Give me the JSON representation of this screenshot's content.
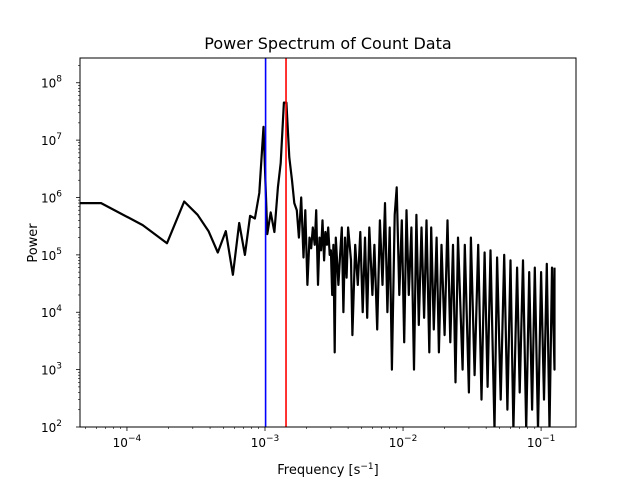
{
  "chart_data": {
    "type": "line",
    "title": "Power Spectrum of Count Data",
    "xlabel": "Frequency [s",
    "xlabel_sup": "−1",
    "xlabel_end": "]",
    "ylabel": "Power",
    "xscale": "log",
    "yscale": "log",
    "xlim": [
      4.57e-05,
      0.179
    ],
    "ylim": [
      100,
      270000000.0
    ],
    "grid": false,
    "x_ticks": [
      {
        "base": "10",
        "exp": "−4",
        "value": 0.0001
      },
      {
        "base": "10",
        "exp": "−3",
        "value": 0.001
      },
      {
        "base": "10",
        "exp": "−2",
        "value": 0.01
      },
      {
        "base": "10",
        "exp": "−1",
        "value": 0.1
      }
    ],
    "y_ticks": [
      {
        "base": "10",
        "exp": "2",
        "value": 100.0
      },
      {
        "base": "10",
        "exp": "3",
        "value": 1000.0
      },
      {
        "base": "10",
        "exp": "4",
        "value": 10000.0
      },
      {
        "base": "10",
        "exp": "5",
        "value": 100000.0
      },
      {
        "base": "10",
        "exp": "6",
        "value": 1000000.0
      },
      {
        "base": "10",
        "exp": "7",
        "value": 10000000.0
      },
      {
        "base": "10",
        "exp": "8",
        "value": 100000000.0
      }
    ],
    "vertical_lines": [
      {
        "x": 0.00101,
        "color": "#0000ff"
      },
      {
        "x": 0.00142,
        "color": "#ff0000"
      }
    ],
    "series_color": "#000000",
    "points": [
      [
        3.3e-05,
        800000.0
      ],
      [
        6.5e-05,
        800000.0
      ],
      [
        0.00013,
        330000.0
      ],
      [
        0.000195,
        160000.0
      ],
      [
        0.00026,
        850000.0
      ],
      [
        0.000325,
        500000.0
      ],
      [
        0.00039,
        260000.0
      ],
      [
        0.000455,
        110000.0
      ],
      [
        0.00052,
        260000.0
      ],
      [
        0.000585,
        45000.0
      ],
      [
        0.00065,
        360000.0
      ],
      [
        0.000715,
        100000.0
      ],
      [
        0.00078,
        480000.0
      ],
      [
        0.000845,
        430000.0
      ],
      [
        0.00091,
        1200000.0
      ],
      [
        0.000975,
        17000000.0
      ],
      [
        0.00104,
        230000.0
      ],
      [
        0.0011,
        550000.0
      ],
      [
        0.00117,
        250000.0
      ],
      [
        0.00124,
        1500000.0
      ],
      [
        0.0013,
        4000000.0
      ],
      [
        0.00137,
        45000000.0
      ],
      [
        0.00143,
        45000000.0
      ],
      [
        0.0015,
        5000000.0
      ],
      [
        0.00157,
        2000000.0
      ],
      [
        0.00163,
        800000.0
      ],
      [
        0.0017,
        600000.0
      ],
      [
        0.00176,
        200000.0
      ],
      [
        0.00183,
        1000000.0
      ],
      [
        0.0019,
        90000.0
      ],
      [
        0.00196,
        600000.0
      ],
      [
        0.00203,
        30000.0
      ],
      [
        0.0021,
        200000.0
      ],
      [
        0.00216,
        130000.0
      ],
      [
        0.00222,
        300000.0
      ],
      [
        0.00229,
        150000.0
      ],
      [
        0.00235,
        600000.0
      ],
      [
        0.00242,
        30000.0
      ],
      [
        0.00248,
        200000.0
      ],
      [
        0.00255,
        120000.0
      ],
      [
        0.00261,
        400000.0
      ],
      [
        0.00268,
        80000.0
      ],
      [
        0.00274,
        250000.0
      ],
      [
        0.00281,
        150000.0
      ],
      [
        0.00287,
        300000.0
      ],
      [
        0.00294,
        100000.0
      ],
      [
        0.003,
        120000.0
      ],
      [
        0.00307,
        20000.0
      ],
      [
        0.00313,
        150000.0
      ],
      [
        0.0032,
        2000.0
      ],
      [
        0.00326,
        200000.0
      ],
      [
        0.0034,
        30000.0
      ],
      [
        0.0035,
        100000.0
      ],
      [
        0.0036,
        300000.0
      ],
      [
        0.0037,
        10000.0
      ],
      [
        0.0038,
        200000.0
      ],
      [
        0.0039,
        40000.0
      ],
      [
        0.004,
        300000.0
      ],
      [
        0.0042,
        80000.0
      ],
      [
        0.0043,
        4000.0
      ],
      [
        0.0045,
        150000.0
      ],
      [
        0.0047,
        30000.0
      ],
      [
        0.0049,
        250000.0
      ],
      [
        0.0051,
        10000.0
      ],
      [
        0.0053,
        200000.0
      ],
      [
        0.0055,
        8000.0
      ],
      [
        0.0057,
        300000.0
      ],
      [
        0.006,
        20000.0
      ],
      [
        0.0062,
        150000.0
      ],
      [
        0.0065,
        5000.0
      ],
      [
        0.0068,
        400000.0
      ],
      [
        0.0071,
        30000.0
      ],
      [
        0.0074,
        800000.0
      ],
      [
        0.0077,
        10000.0
      ],
      [
        0.008,
        300000.0
      ],
      [
        0.0083,
        1000.0
      ],
      [
        0.0087,
        500000.0
      ],
      [
        0.009,
        1500000.0
      ],
      [
        0.0094,
        20000.0
      ],
      [
        0.0098,
        400000.0
      ],
      [
        0.0102,
        3000.0
      ],
      [
        0.0106,
        600000.0
      ],
      [
        0.011,
        20000.0
      ],
      [
        0.0115,
        300000.0
      ],
      [
        0.012,
        1000.0
      ],
      [
        0.0125,
        500000.0
      ],
      [
        0.013,
        6000.0
      ],
      [
        0.0136,
        300000.0
      ],
      [
        0.0142,
        8000.0
      ],
      [
        0.0148,
        400000.0
      ],
      [
        0.0155,
        2000.0
      ],
      [
        0.016,
        300000.0
      ],
      [
        0.0167,
        5000.0
      ],
      [
        0.0175,
        200000.0
      ],
      [
        0.0182,
        2000.0
      ],
      [
        0.019,
        150000.0
      ],
      [
        0.02,
        4000.0
      ],
      [
        0.021,
        400000.0
      ],
      [
        0.022,
        3000.0
      ],
      [
        0.023,
        150000.0
      ],
      [
        0.024,
        600
      ],
      [
        0.025,
        200000.0
      ],
      [
        0.027,
        1000.0
      ],
      [
        0.028,
        150000.0
      ],
      [
        0.03,
        400
      ],
      [
        0.031,
        200000.0
      ],
      [
        0.033,
        800
      ],
      [
        0.035,
        150000.0
      ],
      [
        0.037,
        300
      ],
      [
        0.039,
        110000.0
      ],
      [
        0.041,
        500
      ],
      [
        0.043,
        120000.0
      ],
      [
        0.046,
        90
      ],
      [
        0.048,
        90000.0
      ],
      [
        0.051,
        300
      ],
      [
        0.054,
        100000.0
      ],
      [
        0.057,
        200
      ],
      [
        0.06,
        80000.0
      ],
      [
        0.063,
        90
      ],
      [
        0.067,
        60000.0
      ],
      [
        0.07,
        400
      ],
      [
        0.074,
        80000.0
      ],
      [
        0.078,
        90
      ],
      [
        0.082,
        50000.0
      ],
      [
        0.086,
        200
      ],
      [
        0.09,
        60000.0
      ],
      [
        0.095,
        90
      ],
      [
        0.1,
        50000.0
      ],
      [
        0.105,
        300
      ],
      [
        0.11,
        70000.0
      ],
      [
        0.115,
        90
      ],
      [
        0.12,
        60000.0
      ],
      [
        0.125,
        1000.0
      ],
      [
        0.125,
        60000.0
      ]
    ]
  }
}
